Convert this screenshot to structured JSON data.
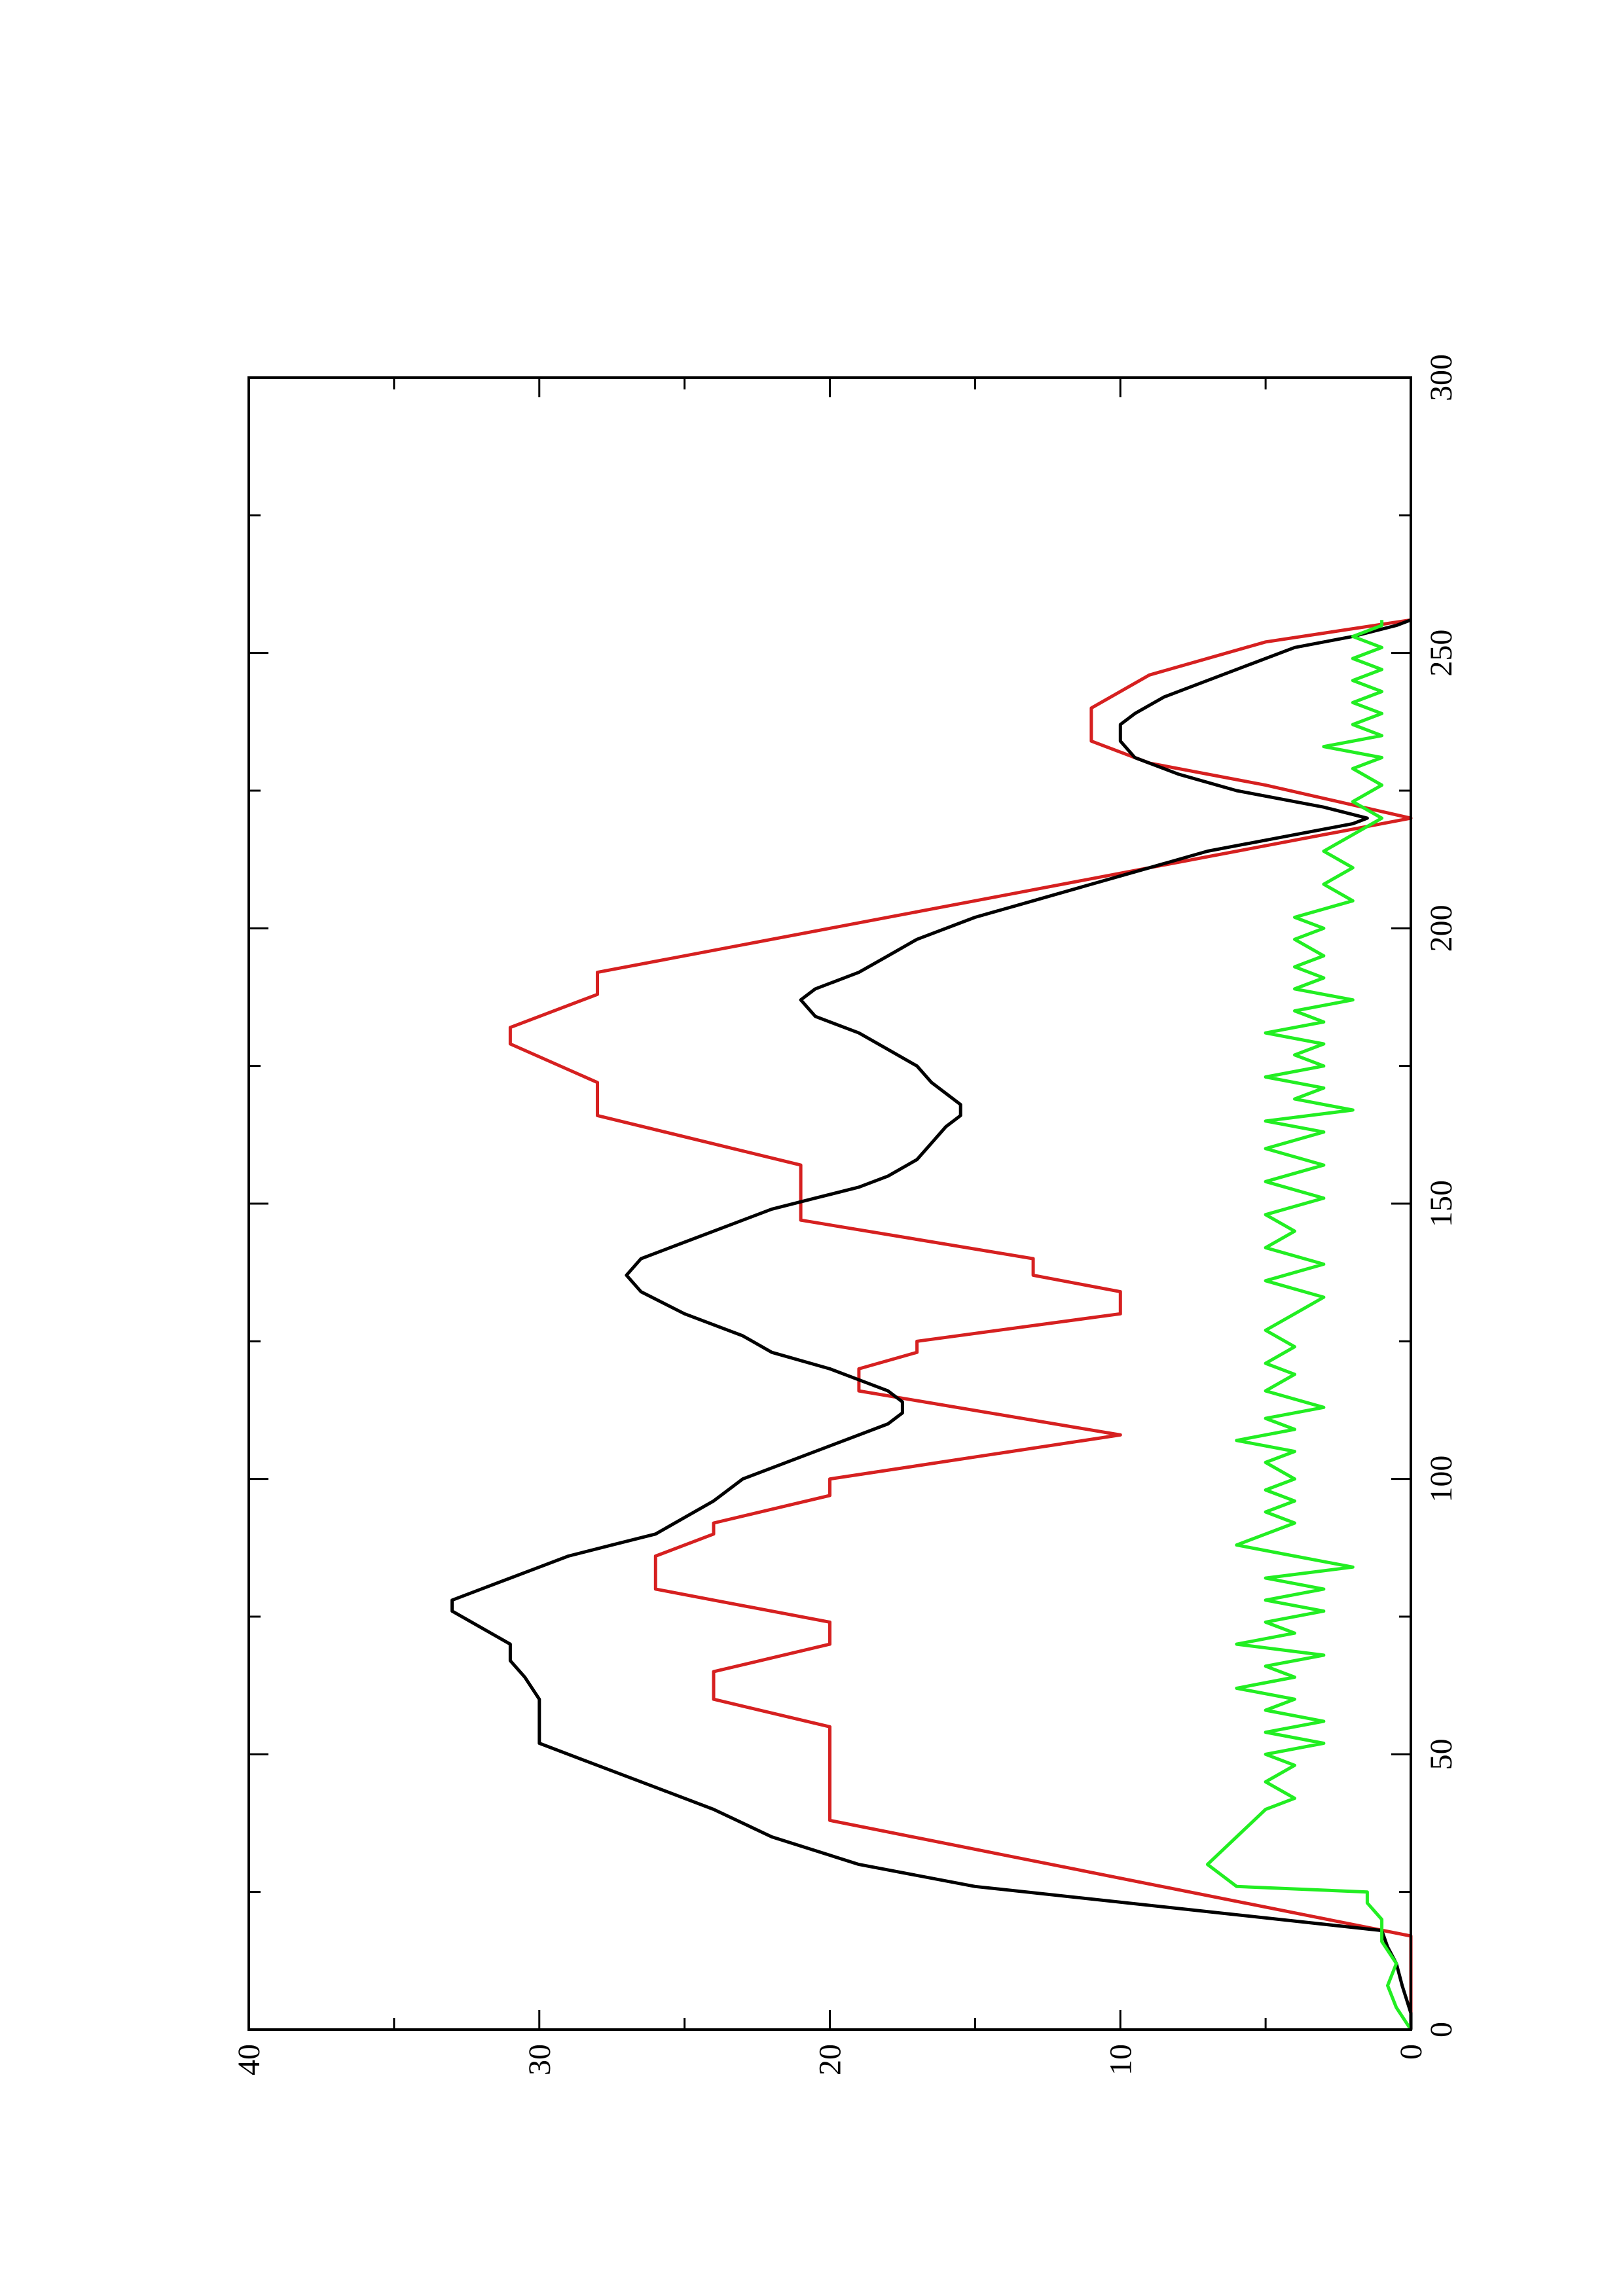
{
  "chart_data": {
    "type": "line",
    "orientation": "rotated-90-ccw",
    "title": "",
    "xlabel": "",
    "ylabel": "",
    "xlim": [
      0,
      300
    ],
    "ylim": [
      0,
      40
    ],
    "x_ticks": [
      0,
      50,
      100,
      150,
      200,
      250,
      300
    ],
    "y_ticks": [
      0,
      10,
      20,
      30,
      40
    ],
    "x_minor_step": 25,
    "y_minor_step": 5,
    "grid": false,
    "legend": "none",
    "series": [
      {
        "color": "#d62020",
        "points": [
          [
            0,
            0
          ],
          [
            17,
            0
          ],
          [
            38,
            20
          ],
          [
            55,
            20
          ],
          [
            60,
            24
          ],
          [
            65,
            24
          ],
          [
            70,
            20
          ],
          [
            74,
            20
          ],
          [
            78,
            24
          ],
          [
            80,
            26
          ],
          [
            86,
            26
          ],
          [
            90,
            24
          ],
          [
            92,
            24
          ],
          [
            97,
            20
          ],
          [
            100,
            20
          ],
          [
            108,
            10
          ],
          [
            116,
            19
          ],
          [
            120,
            19
          ],
          [
            123,
            17
          ],
          [
            125,
            17
          ],
          [
            130,
            10
          ],
          [
            134,
            10
          ],
          [
            137,
            13
          ],
          [
            140,
            13
          ],
          [
            147,
            21
          ],
          [
            157,
            21
          ],
          [
            166,
            28
          ],
          [
            172,
            28
          ],
          [
            179,
            31
          ],
          [
            182,
            31
          ],
          [
            188,
            28
          ],
          [
            192,
            28
          ],
          [
            205,
            15
          ],
          [
            210,
            10
          ],
          [
            220,
            0
          ],
          [
            226,
            5
          ],
          [
            230,
            9
          ],
          [
            234,
            11
          ],
          [
            240,
            11
          ],
          [
            246,
            9
          ],
          [
            252,
            5
          ],
          [
            256,
            0
          ]
        ]
      },
      {
        "color": "#000000",
        "points": [
          [
            0,
            0
          ],
          [
            3,
            0
          ],
          [
            8,
            0.3
          ],
          [
            12,
            0.5
          ],
          [
            15,
            0.8
          ],
          [
            18,
            1
          ],
          [
            22,
            8
          ],
          [
            26,
            15
          ],
          [
            30,
            19
          ],
          [
            35,
            22
          ],
          [
            40,
            24
          ],
          [
            44,
            26
          ],
          [
            48,
            28
          ],
          [
            52,
            30
          ],
          [
            56,
            30
          ],
          [
            60,
            30
          ],
          [
            64,
            30.5
          ],
          [
            67,
            31
          ],
          [
            70,
            31
          ],
          [
            73,
            32
          ],
          [
            76,
            33
          ],
          [
            78,
            33
          ],
          [
            80,
            32
          ],
          [
            82,
            31
          ],
          [
            84,
            30
          ],
          [
            86,
            29
          ],
          [
            88,
            27.5
          ],
          [
            90,
            26
          ],
          [
            93,
            25
          ],
          [
            96,
            24
          ],
          [
            100,
            23
          ],
          [
            103,
            21.5
          ],
          [
            106,
            20
          ],
          [
            108,
            19
          ],
          [
            110,
            18
          ],
          [
            112,
            17.5
          ],
          [
            114,
            17.5
          ],
          [
            116,
            18
          ],
          [
            118,
            19
          ],
          [
            120,
            20
          ],
          [
            123,
            22
          ],
          [
            126,
            23
          ],
          [
            130,
            25
          ],
          [
            134,
            26.5
          ],
          [
            137,
            27
          ],
          [
            140,
            26.5
          ],
          [
            143,
            25
          ],
          [
            146,
            23.5
          ],
          [
            149,
            22
          ],
          [
            151,
            20.5
          ],
          [
            153,
            19
          ],
          [
            155,
            18
          ],
          [
            158,
            17
          ],
          [
            161,
            16.5
          ],
          [
            164,
            16
          ],
          [
            166,
            15.5
          ],
          [
            168,
            15.5
          ],
          [
            170,
            16
          ],
          [
            172,
            16.5
          ],
          [
            175,
            17
          ],
          [
            178,
            18
          ],
          [
            181,
            19
          ],
          [
            184,
            20.5
          ],
          [
            187,
            21
          ],
          [
            189,
            20.5
          ],
          [
            192,
            19
          ],
          [
            195,
            18
          ],
          [
            198,
            17
          ],
          [
            202,
            15
          ],
          [
            205,
            13
          ],
          [
            208,
            11
          ],
          [
            211,
            9
          ],
          [
            214,
            7
          ],
          [
            217,
            4
          ],
          [
            219,
            2
          ],
          [
            220,
            1.5
          ],
          [
            222,
            3
          ],
          [
            225,
            6
          ],
          [
            228,
            8
          ],
          [
            231,
            9.5
          ],
          [
            234,
            10
          ],
          [
            237,
            10
          ],
          [
            239,
            9.5
          ],
          [
            242,
            8.5
          ],
          [
            245,
            7
          ],
          [
            248,
            5.5
          ],
          [
            251,
            4
          ],
          [
            253,
            2
          ],
          [
            255,
            0.5
          ],
          [
            256,
            0
          ]
        ]
      },
      {
        "color": "#22ee22",
        "points": [
          [
            0,
            0
          ],
          [
            4,
            0.5
          ],
          [
            8,
            0.8
          ],
          [
            12,
            0.5
          ],
          [
            16,
            1
          ],
          [
            20,
            1
          ],
          [
            23,
            1.5
          ],
          [
            25,
            1.5
          ],
          [
            26,
            6
          ],
          [
            30,
            7
          ],
          [
            35,
            6
          ],
          [
            40,
            5
          ],
          [
            42,
            4
          ],
          [
            45,
            5
          ],
          [
            48,
            4
          ],
          [
            50,
            5
          ],
          [
            52,
            3
          ],
          [
            54,
            5
          ],
          [
            56,
            3
          ],
          [
            58,
            5
          ],
          [
            60,
            4
          ],
          [
            62,
            6
          ],
          [
            64,
            4
          ],
          [
            66,
            5
          ],
          [
            68,
            3
          ],
          [
            70,
            6
          ],
          [
            72,
            4
          ],
          [
            74,
            5
          ],
          [
            76,
            3
          ],
          [
            78,
            5
          ],
          [
            80,
            3
          ],
          [
            82,
            5
          ],
          [
            84,
            2
          ],
          [
            86,
            4
          ],
          [
            88,
            6
          ],
          [
            90,
            5
          ],
          [
            92,
            4
          ],
          [
            94,
            5
          ],
          [
            96,
            4
          ],
          [
            98,
            5
          ],
          [
            100,
            4
          ],
          [
            103,
            5
          ],
          [
            105,
            4
          ],
          [
            107,
            6
          ],
          [
            109,
            4
          ],
          [
            111,
            5
          ],
          [
            113,
            3
          ],
          [
            116,
            5
          ],
          [
            119,
            4
          ],
          [
            121,
            5
          ],
          [
            124,
            4
          ],
          [
            127,
            5
          ],
          [
            130,
            4
          ],
          [
            133,
            3
          ],
          [
            136,
            5
          ],
          [
            139,
            3
          ],
          [
            142,
            5
          ],
          [
            145,
            4
          ],
          [
            148,
            5
          ],
          [
            151,
            3
          ],
          [
            154,
            5
          ],
          [
            157,
            3
          ],
          [
            160,
            5
          ],
          [
            163,
            3
          ],
          [
            165,
            5
          ],
          [
            167,
            2
          ],
          [
            169,
            4
          ],
          [
            171,
            3
          ],
          [
            173,
            5
          ],
          [
            175,
            3
          ],
          [
            177,
            4
          ],
          [
            179,
            3
          ],
          [
            181,
            5
          ],
          [
            183,
            3
          ],
          [
            185,
            4
          ],
          [
            187,
            2
          ],
          [
            189,
            4
          ],
          [
            191,
            3
          ],
          [
            193,
            4
          ],
          [
            195,
            3
          ],
          [
            198,
            4
          ],
          [
            200,
            3
          ],
          [
            202,
            4
          ],
          [
            205,
            2
          ],
          [
            208,
            3
          ],
          [
            211,
            2
          ],
          [
            214,
            3
          ],
          [
            217,
            2
          ],
          [
            220,
            1
          ],
          [
            223,
            2
          ],
          [
            226,
            1
          ],
          [
            229,
            2
          ],
          [
            231,
            1
          ],
          [
            233,
            3
          ],
          [
            235,
            1
          ],
          [
            237,
            2
          ],
          [
            239,
            1
          ],
          [
            241,
            2
          ],
          [
            243,
            1
          ],
          [
            245,
            2
          ],
          [
            247,
            1
          ],
          [
            249,
            2
          ],
          [
            251,
            1
          ],
          [
            253,
            2
          ],
          [
            255,
            1
          ],
          [
            256,
            1
          ]
        ]
      }
    ]
  }
}
